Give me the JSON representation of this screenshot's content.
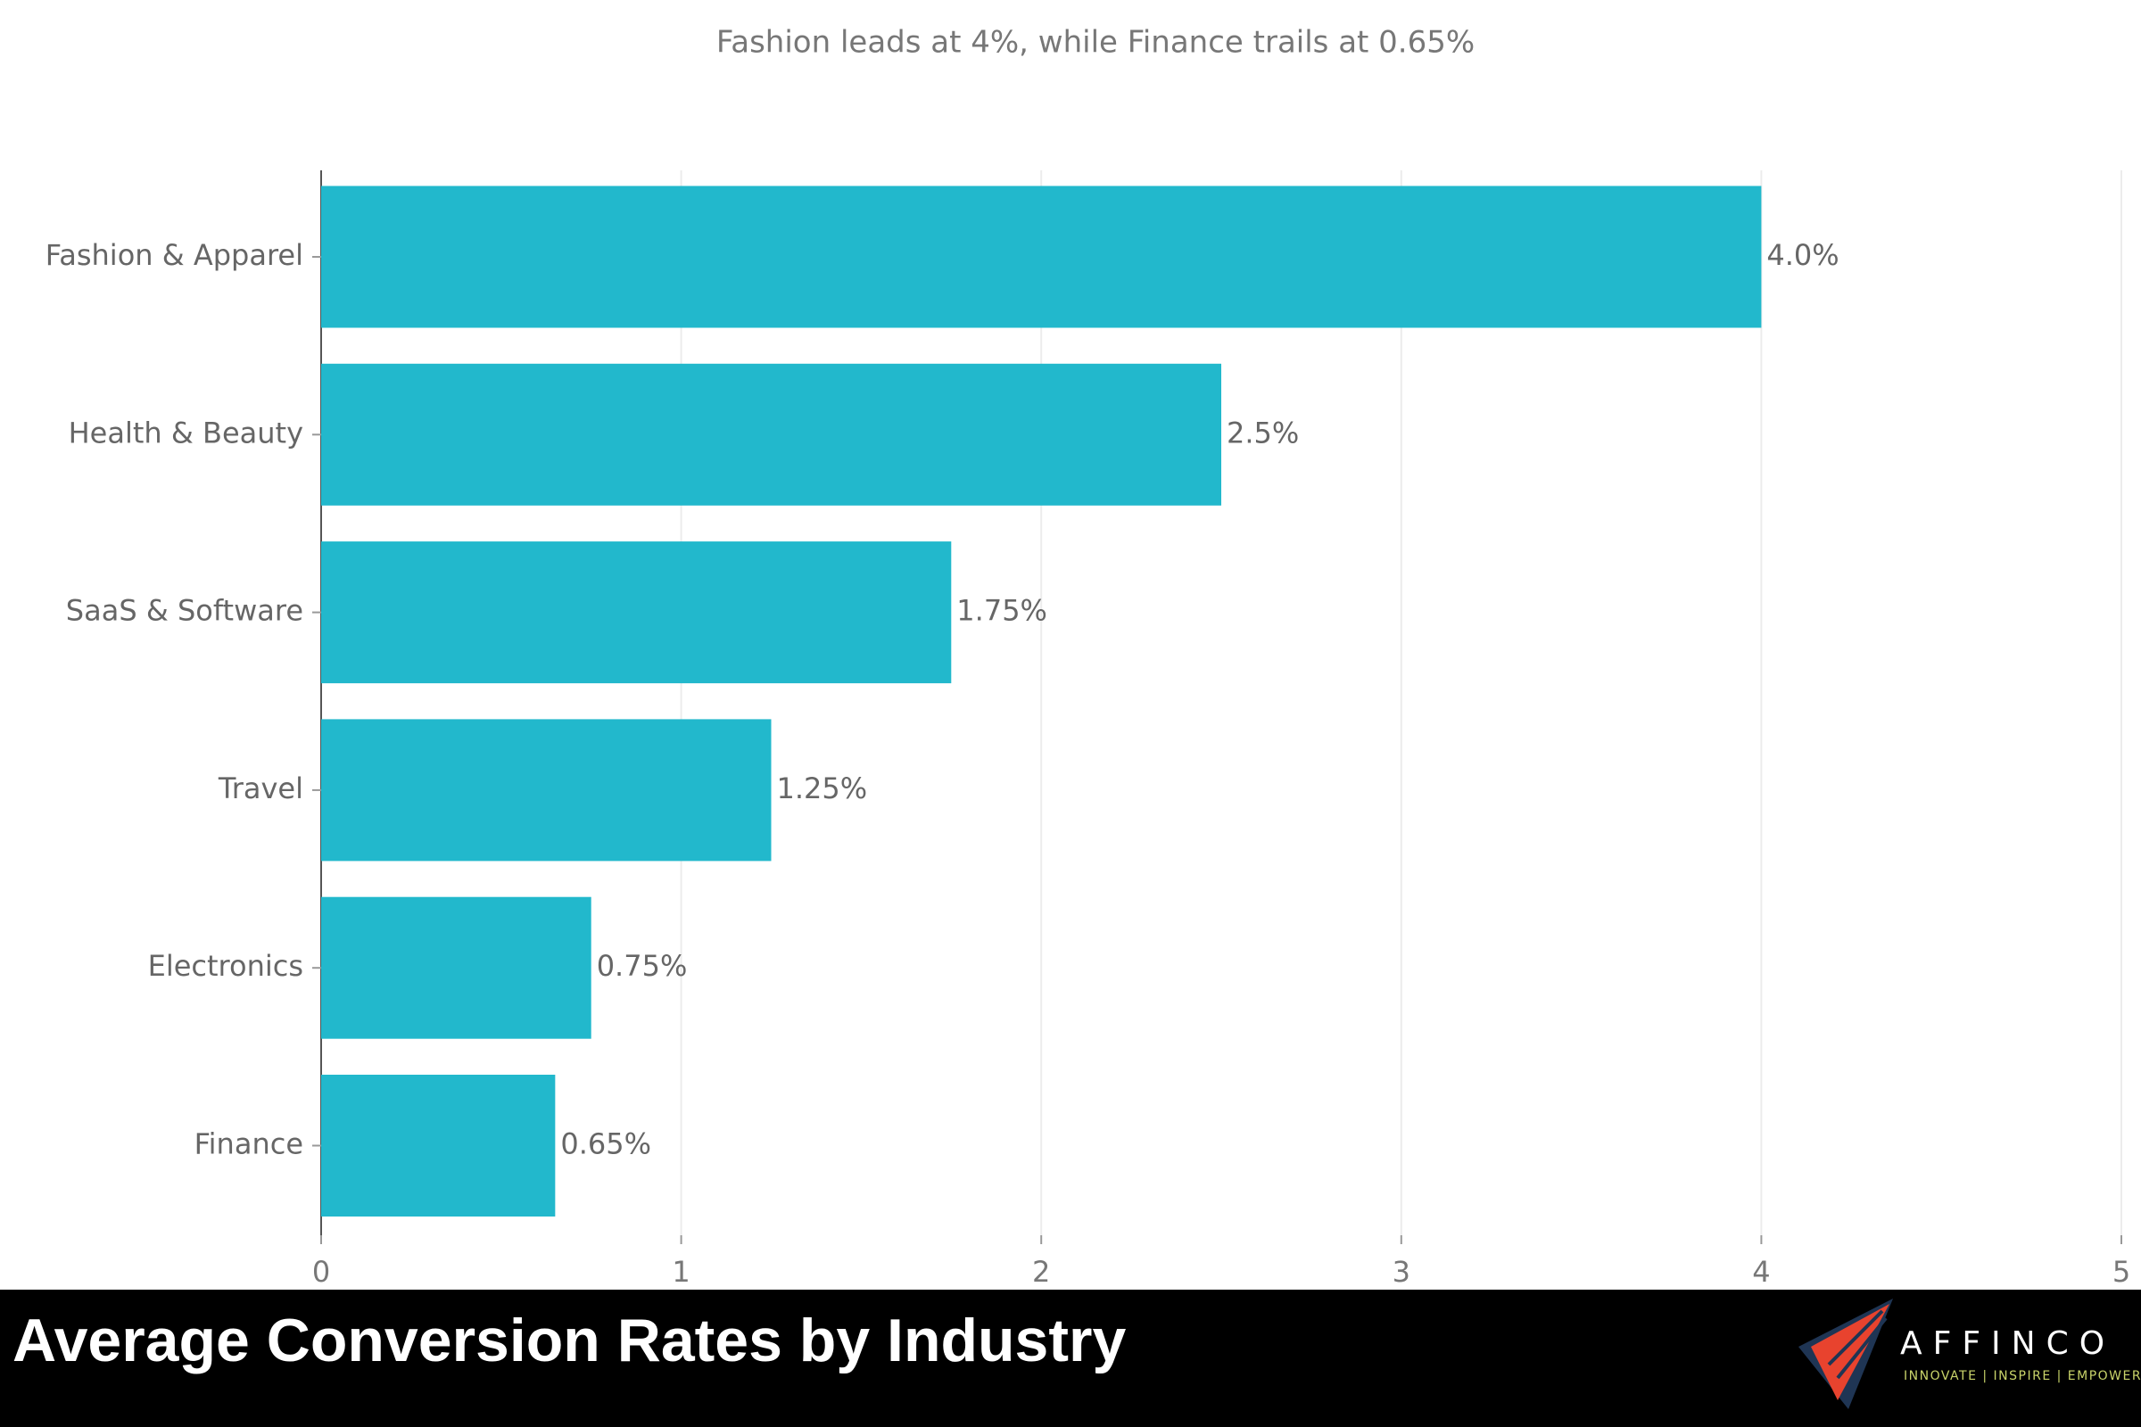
{
  "chart_data": {
    "type": "bar",
    "orientation": "horizontal",
    "title": "Average Conversion Rates by Industry",
    "subtitle": "Fashion leads at 4%, while Finance trails at 0.65%",
    "categories": [
      "Fashion & Apparel",
      "Health & Beauty",
      "SaaS & Software",
      "Travel",
      "Electronics",
      "Finance"
    ],
    "values": [
      4.0,
      2.5,
      1.75,
      1.25,
      0.75,
      0.65
    ],
    "value_labels": [
      "4.0%",
      "2.5%",
      "1.75%",
      "1.25%",
      "0.75%",
      "0.65%"
    ],
    "color": "#22b8cc",
    "xlim": [
      0,
      5
    ],
    "xticks": [
      0,
      1,
      2,
      3,
      4,
      5
    ],
    "grid": true
  },
  "logo": {
    "name": "AFFINCO",
    "tagline": "INNOVATE | INSPIRE | EMPOWER"
  }
}
